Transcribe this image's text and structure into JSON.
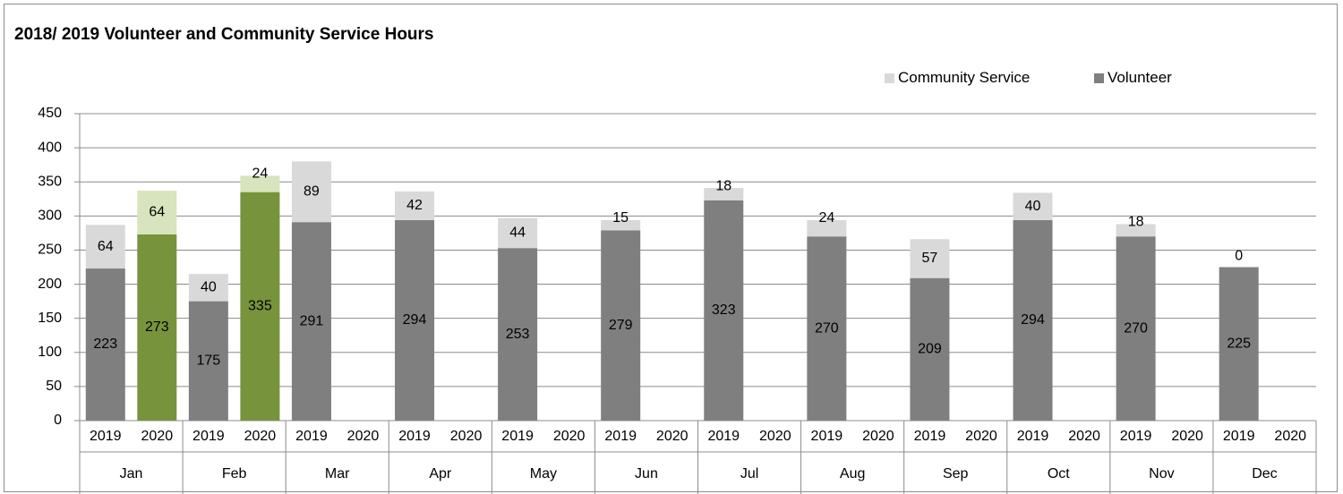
{
  "chart_data": {
    "type": "bar",
    "stacked": true,
    "title": "2018/ 2019 Volunteer and Community Service Hours",
    "ylim": [
      0,
      450
    ],
    "yticks": [
      "0",
      "50",
      "100",
      "150",
      "200",
      "250",
      "300",
      "350",
      "400",
      "450"
    ],
    "grid": true,
    "legend_position": "top-right",
    "months": [
      "Jan",
      "Feb",
      "Mar",
      "Apr",
      "May",
      "Jun",
      "Jul",
      "Aug",
      "Sep",
      "Oct",
      "Nov",
      "Dec"
    ],
    "years": [
      "2019",
      "2020"
    ],
    "series": [
      {
        "name": "Volunteer",
        "color": "#7f7f7f",
        "values_2019": [
          223,
          175,
          291,
          294,
          253,
          279,
          323,
          270,
          209,
          294,
          270,
          225
        ],
        "values_2020": [
          273,
          335,
          null,
          null,
          null,
          null,
          null,
          null,
          null,
          null,
          null,
          null
        ]
      },
      {
        "name": "Community Service",
        "color": "#d9d9d9",
        "values_2019": [
          64,
          40,
          89,
          42,
          44,
          15,
          18,
          24,
          57,
          40,
          18,
          0
        ],
        "values_2020": [
          64,
          24,
          null,
          null,
          null,
          null,
          null,
          null,
          null,
          null,
          null,
          null
        ]
      }
    ],
    "highlight_colors_2020": {
      "Volunteer": "#77933c",
      "Community Service": "#d7e4bd"
    }
  }
}
